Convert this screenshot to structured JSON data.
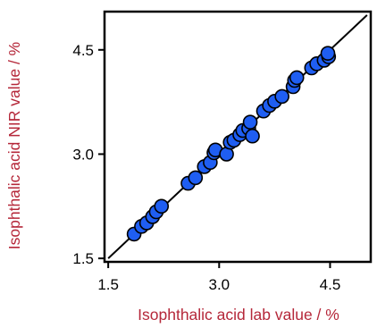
{
  "chart_data": {
    "type": "scatter",
    "title": "",
    "xlabel": "Isophthalic acid lab value / %",
    "ylabel": "Isophthalic acid NIR value / %",
    "xlim": [
      1.45,
      5.05
    ],
    "ylim": [
      1.45,
      5.05
    ],
    "xticks": [
      "1.5",
      "3.0",
      "4.5"
    ],
    "yticks": [
      "1.5",
      "3.0",
      "4.5"
    ],
    "xtick_values": [
      1.5,
      3.0,
      4.5
    ],
    "ytick_values": [
      1.5,
      3.0,
      4.5
    ],
    "grid": false,
    "legend": "none",
    "reference_line": {
      "from": [
        1.5,
        1.5
      ],
      "to": [
        5.0,
        5.0
      ]
    },
    "series": [
      {
        "x": [
          1.85,
          1.95,
          2.02,
          2.1,
          2.15,
          2.22,
          2.58,
          2.68,
          2.8,
          2.88,
          2.93,
          2.95,
          3.1,
          3.15,
          3.2,
          3.28,
          3.32,
          3.4,
          3.42,
          3.45,
          3.6,
          3.68,
          3.75,
          3.85,
          4.0,
          4.02,
          4.05,
          4.25,
          4.32,
          4.42,
          4.48,
          4.47
        ],
        "y": [
          1.85,
          1.96,
          2.01,
          2.1,
          2.17,
          2.25,
          2.58,
          2.66,
          2.82,
          2.88,
          3.02,
          3.06,
          3.0,
          3.17,
          3.2,
          3.28,
          3.34,
          3.37,
          3.46,
          3.26,
          3.62,
          3.7,
          3.76,
          3.83,
          3.97,
          4.06,
          4.1,
          4.24,
          4.3,
          4.35,
          4.4,
          4.45
        ]
      }
    ],
    "colors": {
      "point_fill": "#1f5ef2",
      "point_stroke": "#000000",
      "axis_title": "#b5283a",
      "line": "#000000"
    }
  }
}
